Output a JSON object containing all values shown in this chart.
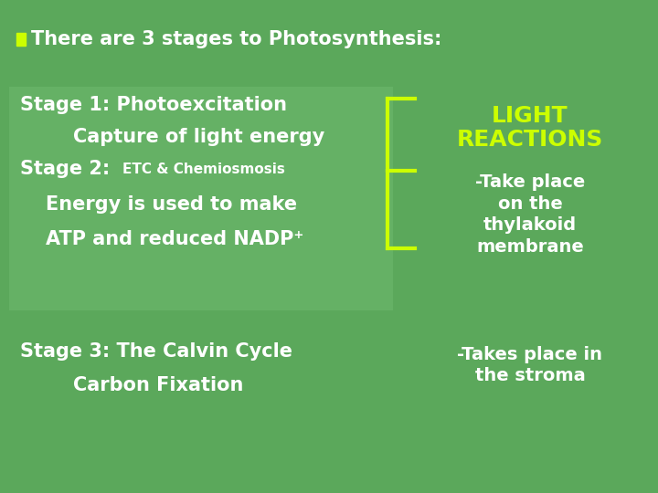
{
  "bg_color": "#5ba85b",
  "title_bullet_color": "#ccff00",
  "title_text": "There are 3 stages to Photosynthesis:",
  "title_color": "white",
  "title_fontsize": 15,
  "box_bg_color": "#6ab56a",
  "bracket_color": "#ccff00",
  "bracket_lw": 3.0,
  "yellow_color": "#ccff00",
  "white_color": "white",
  "stage3_left_line1": "Stage 3: The Calvin Cycle",
  "stage3_left_line2": "Carbon Fixation",
  "stage3_right_line1": "-Takes place in",
  "stage3_right_line2": "the stroma"
}
